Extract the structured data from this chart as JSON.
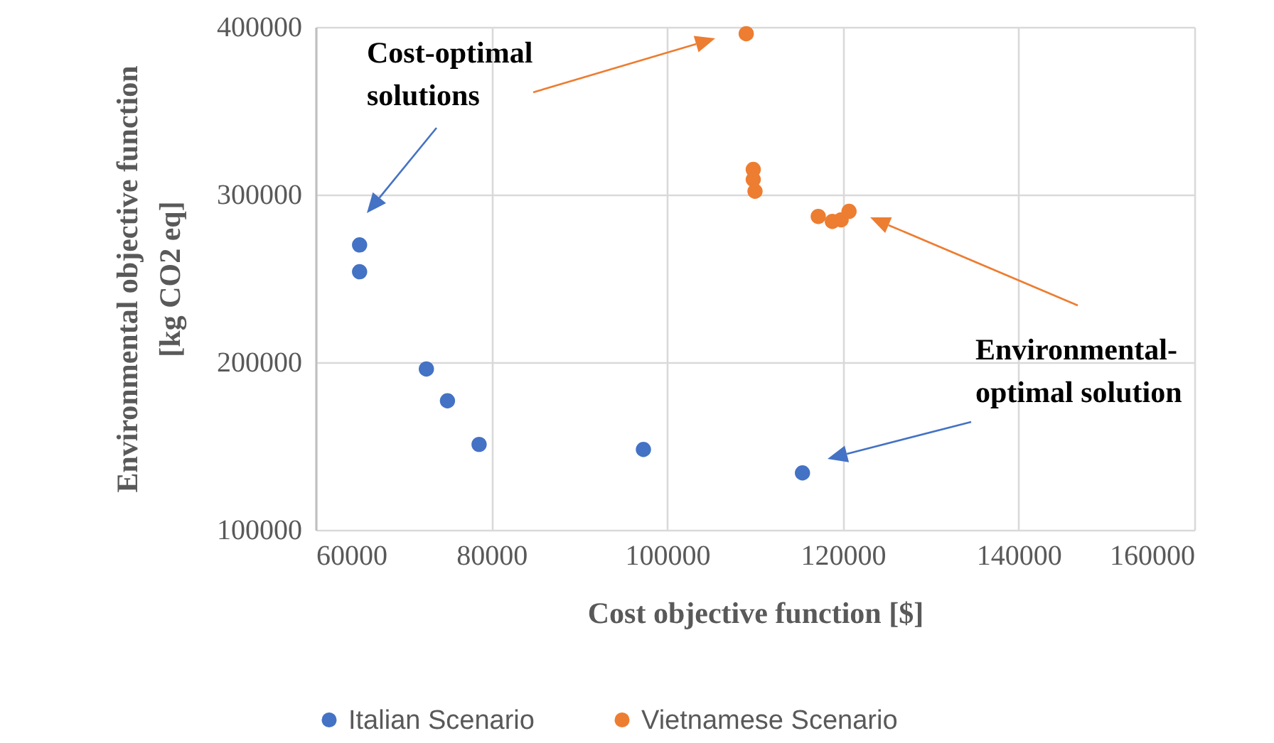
{
  "chart_data": {
    "type": "scatter",
    "xlabel": "Cost objective function [$]",
    "ylabel": "Environmental objective function\n[kg CO2 eq]",
    "annotations": [
      "Cost-optimal\nsolutions",
      "Environmental-\noptimal solution"
    ],
    "series": [
      {
        "name": "Italian Scenario",
        "color": "#4472c4",
        "x": [
          65000,
          65000,
          72600,
          75000,
          78600,
          97300,
          115400
        ],
        "values": [
          270000,
          254000,
          196000,
          177000,
          151000,
          148000,
          134000
        ]
      },
      {
        "name": "Vietnamese Scenario",
        "color": "#ed7d31",
        "x": [
          109000,
          109800,
          109800,
          110000,
          117200,
          118800,
          119800,
          120700
        ],
        "values": [
          396000,
          315000,
          309000,
          302000,
          287000,
          284000,
          285000,
          290000
        ]
      }
    ],
    "xlim": [
      60000,
      160000
    ],
    "xticks": [
      60000,
      80000,
      100000,
      120000,
      140000,
      160000
    ],
    "ylim": [
      100000,
      400000
    ],
    "yticks": [
      100000,
      200000,
      300000,
      400000
    ],
    "grid": true,
    "legend": "bottom",
    "marker": "circle"
  }
}
